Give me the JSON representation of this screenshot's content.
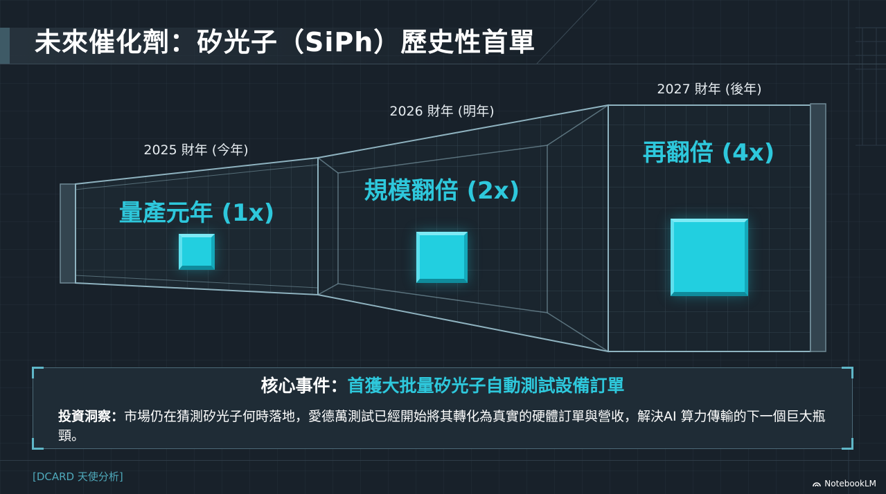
{
  "title": "未來催化劑：矽光子（SiPh）歷史性首單",
  "stages": [
    {
      "year_label": "2025 財年 (今年)",
      "stage_label": "量產元年 (1x)",
      "multiplier": 1
    },
    {
      "year_label": "2026 財年 (明年)",
      "stage_label": "規模翻倍 (2x)",
      "multiplier": 2
    },
    {
      "year_label": "2027 財年 (後年)",
      "stage_label": "再翻倍 (4x)",
      "multiplier": 4
    }
  ],
  "callout": {
    "headline_label": "核心事件：",
    "headline_value": "首獲大批量矽光子自動測試設備訂單",
    "insight_label": "投資洞察：",
    "insight_text": "市場仍在猜測矽光子何時落地，愛德萬測試已經開始將其轉化為真實的硬體訂單與營收，解決AI 算力傳輸的下一個巨大瓶頸。"
  },
  "source": "[DCARD 天使分析]",
  "brand": "NotebookLM",
  "colors": {
    "accent": "#2ec8dc",
    "cube": "#22cfe0",
    "background": "#18212a"
  }
}
